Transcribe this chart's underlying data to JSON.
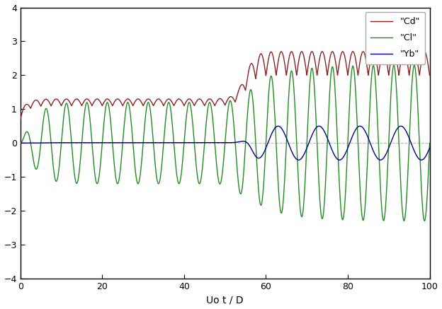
{
  "xlim": [
    0,
    100
  ],
  "ylim": [
    -4,
    4
  ],
  "xlabel": "Uo t / D",
  "xticks": [
    0,
    20,
    40,
    60,
    80,
    100
  ],
  "yticks": [
    -4,
    -3,
    -2,
    -1,
    0,
    1,
    2,
    3,
    4
  ],
  "legend": [
    {
      "label": "\"Cd\"",
      "color": "#8B2020"
    },
    {
      "label": "\"Cl\"",
      "color": "#228B22"
    },
    {
      "label": "\"Yb\"",
      "color": "#00008B"
    }
  ],
  "cd_color": "#8B2020",
  "cl_color": "#228B22",
  "yb_color": "#00008B",
  "background_color": "#FFFFFF",
  "dashed_line_color": "#888888"
}
